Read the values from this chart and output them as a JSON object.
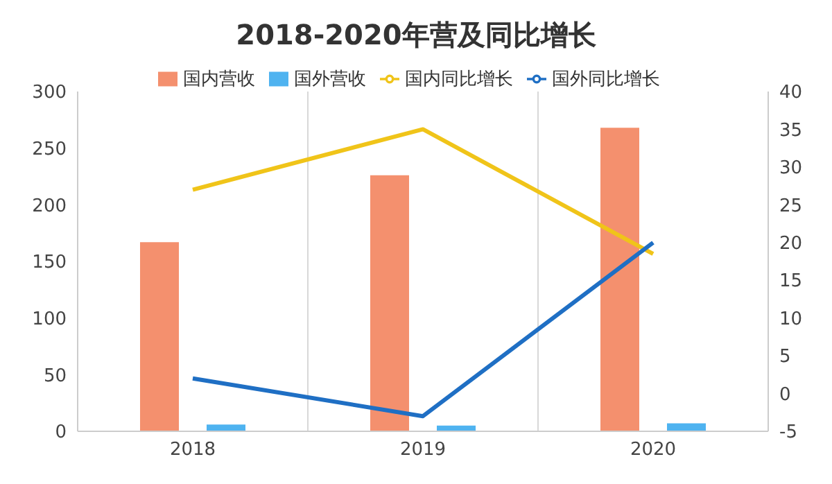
{
  "chart_data": {
    "type": "bar",
    "title": "2018-2020年营及同比增长",
    "categories": [
      "2018",
      "2019",
      "2020"
    ],
    "series": [
      {
        "name": "国内营收",
        "color": "#f4906e",
        "values": [
          167,
          226,
          268
        ]
      },
      {
        "name": "国外营收",
        "color": "#4fb3f0",
        "values": [
          6,
          5,
          7
        ]
      },
      {
        "name": "国内同比增长",
        "type": "line",
        "axis": "y2",
        "color": "#f0c419",
        "values": [
          27,
          35,
          18.5
        ]
      },
      {
        "name": "国外同比增长",
        "type": "line",
        "axis": "y2",
        "color": "#1f6fc4",
        "values": [
          2,
          -3,
          20
        ]
      }
    ],
    "ylim": [
      0,
      300
    ],
    "yticks": [
      0,
      50,
      100,
      150,
      200,
      250,
      300
    ],
    "y2lim": [
      -5,
      40
    ],
    "y2ticks": [
      -5,
      0,
      5,
      10,
      15,
      20,
      25,
      30,
      35,
      40
    ],
    "grid": "x",
    "legend": "top",
    "marker": "none"
  }
}
